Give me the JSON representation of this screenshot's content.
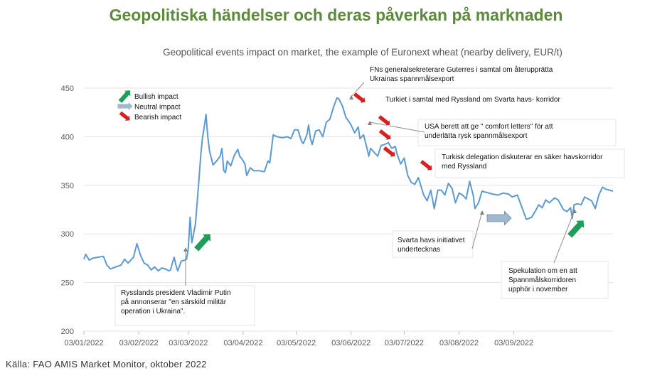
{
  "title": "Geopolitiska händelser och deras påverkan på marknaden",
  "source": "Källa: FAO AMIS Market Monitor, oktober 2022",
  "colors": {
    "line": "#5b9bd5",
    "bullish": "#1e9e5a",
    "neutral": "#9fb8cf",
    "bearish": "#d92020",
    "title": "#5a8a3a"
  },
  "legend": [
    {
      "label": "Bullish impact",
      "icon": "arrow-up-right-icon",
      "color": "#1e9e5a"
    },
    {
      "label": "Neutral impact",
      "icon": "arrow-right-icon",
      "color": "#9fb8cf"
    },
    {
      "label": "Bearish impact",
      "icon": "arrow-down-right-icon",
      "color": "#d92020"
    }
  ],
  "chart_data": {
    "type": "line",
    "title": "Geopolitical events impact on market, the example of Euronext wheat (nearby delivery, EUR/t)",
    "xlabel": "",
    "ylabel": "",
    "ylim": [
      200,
      450
    ],
    "yticks": [
      200,
      250,
      300,
      350,
      400,
      450
    ],
    "xticks": [
      "03/01/2022",
      "03/02/2022",
      "03/03/2022",
      "03/04/2022",
      "03/05/2022",
      "03/06/2022",
      "03/07/2022",
      "03/08/2022",
      "03/09/2022"
    ],
    "grid": "horizontal",
    "series": [
      {
        "points": [
          [
            "2022-01-03",
            274
          ],
          [
            "2022-01-04",
            279
          ],
          [
            "2022-01-06",
            273
          ],
          [
            "2022-01-08",
            275
          ],
          [
            "2022-01-11",
            276
          ],
          [
            "2022-01-14",
            277
          ],
          [
            "2022-01-16",
            268
          ],
          [
            "2022-01-18",
            264
          ],
          [
            "2022-01-21",
            266
          ],
          [
            "2022-01-24",
            268
          ],
          [
            "2022-01-26",
            274
          ],
          [
            "2022-01-28",
            270
          ],
          [
            "2022-01-31",
            276
          ],
          [
            "2022-02-02",
            290
          ],
          [
            "2022-02-04",
            278
          ],
          [
            "2022-02-06",
            270
          ],
          [
            "2022-02-08",
            268
          ],
          [
            "2022-02-10",
            263
          ],
          [
            "2022-02-12",
            266
          ],
          [
            "2022-02-14",
            262
          ],
          [
            "2022-02-16",
            265
          ],
          [
            "2022-02-18",
            264
          ],
          [
            "2022-02-20",
            262
          ],
          [
            "2022-02-21",
            263
          ],
          [
            "2022-02-22",
            270
          ],
          [
            "2022-02-23",
            276
          ],
          [
            "2022-02-24",
            268
          ],
          [
            "2022-02-25",
            262
          ],
          [
            "2022-02-27",
            272
          ],
          [
            "2022-03-01",
            273
          ],
          [
            "2022-03-02",
            274
          ],
          [
            "2022-03-03",
            285
          ],
          [
            "2022-03-04",
            317
          ],
          [
            "2022-03-05",
            291
          ],
          [
            "2022-03-07",
            310
          ],
          [
            "2022-03-09",
            355
          ],
          [
            "2022-03-10",
            380
          ],
          [
            "2022-03-11",
            399
          ],
          [
            "2022-03-12",
            410
          ],
          [
            "2022-03-13",
            423
          ],
          [
            "2022-03-14",
            400
          ],
          [
            "2022-03-15",
            385
          ],
          [
            "2022-03-17",
            371
          ],
          [
            "2022-03-19",
            375
          ],
          [
            "2022-03-21",
            380
          ],
          [
            "2022-03-22",
            388
          ],
          [
            "2022-03-23",
            365
          ],
          [
            "2022-03-24",
            363
          ],
          [
            "2022-03-25",
            375
          ],
          [
            "2022-03-27",
            370
          ],
          [
            "2022-03-29",
            381
          ],
          [
            "2022-03-31",
            387
          ],
          [
            "2022-04-01",
            380
          ],
          [
            "2022-04-02",
            378
          ],
          [
            "2022-04-04",
            372
          ],
          [
            "2022-04-05",
            360
          ],
          [
            "2022-04-07",
            368
          ],
          [
            "2022-04-09",
            365
          ],
          [
            "2022-04-12",
            365
          ],
          [
            "2022-04-15",
            364
          ],
          [
            "2022-04-17",
            375
          ],
          [
            "2022-04-18",
            373
          ],
          [
            "2022-04-20",
            402
          ],
          [
            "2022-04-22",
            400
          ],
          [
            "2022-04-25",
            399
          ],
          [
            "2022-04-28",
            400
          ],
          [
            "2022-04-30",
            398
          ],
          [
            "2022-05-02",
            407
          ],
          [
            "2022-05-04",
            407
          ],
          [
            "2022-05-06",
            395
          ],
          [
            "2022-05-07",
            393
          ],
          [
            "2022-05-09",
            402
          ],
          [
            "2022-05-10",
            412
          ],
          [
            "2022-05-11",
            398
          ],
          [
            "2022-05-12",
            392
          ],
          [
            "2022-05-14",
            406
          ],
          [
            "2022-05-16",
            407
          ],
          [
            "2022-05-18",
            400
          ],
          [
            "2022-05-20",
            415
          ],
          [
            "2022-05-22",
            418
          ],
          [
            "2022-05-24",
            430
          ],
          [
            "2022-05-26",
            440
          ],
          [
            "2022-05-27",
            439
          ],
          [
            "2022-05-29",
            432
          ],
          [
            "2022-05-31",
            420
          ],
          [
            "2022-06-02",
            415
          ],
          [
            "2022-06-03",
            412
          ],
          [
            "2022-06-05",
            404
          ],
          [
            "2022-06-07",
            410
          ],
          [
            "2022-06-08",
            398
          ],
          [
            "2022-06-10",
            402
          ],
          [
            "2022-06-12",
            388
          ],
          [
            "2022-06-13",
            380
          ],
          [
            "2022-06-14",
            388
          ],
          [
            "2022-06-16",
            384
          ],
          [
            "2022-06-18",
            380
          ],
          [
            "2022-06-20",
            391
          ],
          [
            "2022-06-22",
            392
          ],
          [
            "2022-06-24",
            394
          ],
          [
            "2022-06-26",
            388
          ],
          [
            "2022-06-28",
            390
          ],
          [
            "2022-06-29",
            382
          ],
          [
            "2022-07-01",
            372
          ],
          [
            "2022-07-03",
            378
          ],
          [
            "2022-07-05",
            360
          ],
          [
            "2022-07-07",
            353
          ],
          [
            "2022-07-09",
            351
          ],
          [
            "2022-07-11",
            358
          ],
          [
            "2022-07-12",
            352
          ],
          [
            "2022-07-14",
            340
          ],
          [
            "2022-07-16",
            334
          ],
          [
            "2022-07-18",
            345
          ],
          [
            "2022-07-20",
            326
          ],
          [
            "2022-07-22",
            345
          ],
          [
            "2022-07-24",
            345
          ],
          [
            "2022-07-26",
            340
          ],
          [
            "2022-07-28",
            352
          ],
          [
            "2022-07-30",
            347
          ],
          [
            "2022-08-01",
            332
          ],
          [
            "2022-08-03",
            342
          ],
          [
            "2022-08-05",
            340
          ],
          [
            "2022-08-07",
            336
          ],
          [
            "2022-08-09",
            354
          ],
          [
            "2022-08-11",
            340
          ],
          [
            "2022-08-12",
            326
          ],
          [
            "2022-08-14",
            332
          ],
          [
            "2022-08-16",
            344
          ],
          [
            "2022-08-18",
            343
          ],
          [
            "2022-08-22",
            341
          ],
          [
            "2022-08-25",
            340
          ],
          [
            "2022-08-28",
            342
          ],
          [
            "2022-08-31",
            341
          ],
          [
            "2022-09-02",
            338
          ],
          [
            "2022-09-05",
            340
          ],
          [
            "2022-09-08",
            325
          ],
          [
            "2022-09-10",
            315
          ],
          [
            "2022-09-13",
            317
          ],
          [
            "2022-09-15",
            323
          ],
          [
            "2022-09-17",
            330
          ],
          [
            "2022-09-19",
            327
          ],
          [
            "2022-09-21",
            335
          ],
          [
            "2022-09-23",
            332
          ],
          [
            "2022-09-26",
            337
          ],
          [
            "2022-09-28",
            335
          ],
          [
            "2022-10-01",
            325
          ],
          [
            "2022-10-03",
            323
          ],
          [
            "2022-10-05",
            327
          ],
          [
            "2022-10-06",
            316
          ],
          [
            "2022-10-07",
            330
          ],
          [
            "2022-10-09",
            331
          ],
          [
            "2022-10-11",
            330
          ],
          [
            "2022-10-13",
            338
          ],
          [
            "2022-10-15",
            336
          ],
          [
            "2022-10-17",
            334
          ],
          [
            "2022-10-19",
            326
          ],
          [
            "2022-10-21",
            340
          ],
          [
            "2022-10-23",
            348
          ],
          [
            "2022-10-25",
            346
          ],
          [
            "2022-10-27",
            345
          ],
          [
            "2022-10-29",
            344
          ]
        ]
      }
    ],
    "annotations": [
      {
        "text": [
          "FNs generalsekreterare Guterres  i samtal om återupprätta",
          "Ukrainas spannmålsexport"
        ]
      },
      {
        "text": [
          "Turkiet i samtal med Ryssland om Svarta havs- korridor"
        ]
      },
      {
        "text": [
          "USA berett att ge \" comfort letters\" för att",
          "underlätta rysk spannmålsexport"
        ]
      },
      {
        "text": [
          "Turkisk delegation diskuterar en säker havskorridor",
          "med Ryssland"
        ]
      },
      {
        "text": [
          "Svarta havs initiativet",
          "undertecknas"
        ]
      },
      {
        "text": [
          "Spekulation om en att",
          "Spannmålskorridoren",
          "upphör i november"
        ]
      },
      {
        "text": [
          "Rysslands president Vladimir Putin",
          "på annonserar \"en särskild militär",
          "operation i Ukraina\"."
        ]
      }
    ]
  }
}
